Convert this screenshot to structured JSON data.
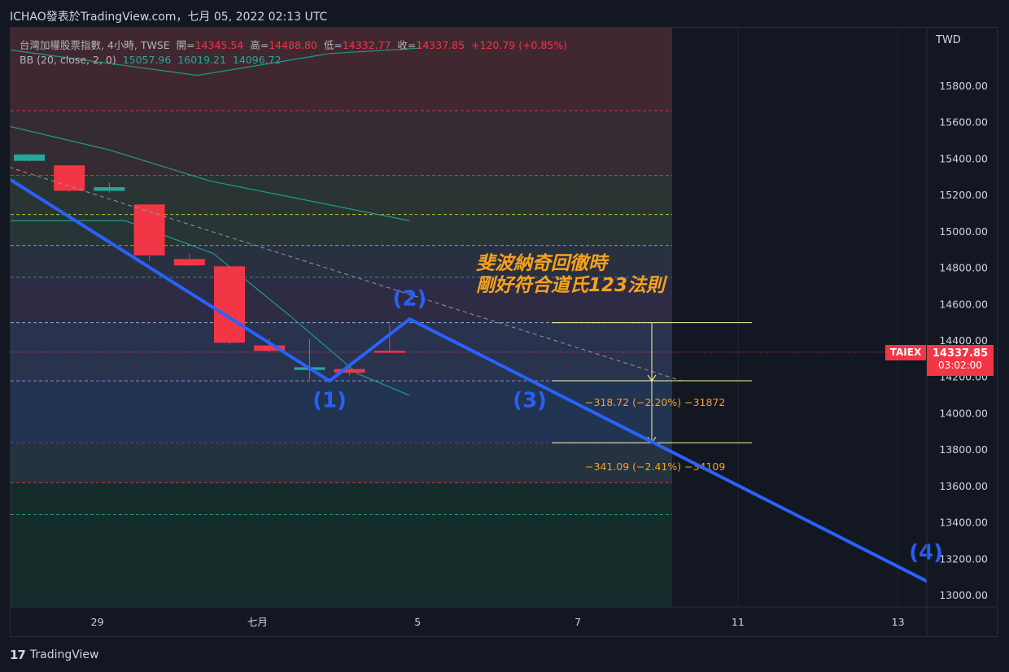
{
  "header": {
    "title": "ICHAO發表於TradingView.com，七月 05, 2022 02:13 UTC"
  },
  "legend": {
    "symbol_line": "台灣加權股票指數, 4小時, TWSE",
    "open_label": "開=",
    "open": "14345.54",
    "high_label": "高=",
    "high": "14488.80",
    "low_label": "低=",
    "low": "14332.77",
    "close_label": "收=",
    "close": "14337.85",
    "change": "+120.79 (+0.85%)",
    "bb_label": "BB (20, close, 2, 0)",
    "bb_basis": "15057.96",
    "bb_upper": "16019.21",
    "bb_lower": "14096.72"
  },
  "axis": {
    "currency": "TWD",
    "symbol_tag": "TAIEX",
    "last_price": "14337.85",
    "countdown": "03:02:00"
  },
  "annotation": {
    "line1": "斐波納奇回徹時",
    "line2": "剛好符合道氏123法則"
  },
  "measure": {
    "label1": "−318.72 (−2.20%) −31872",
    "label2": "−341.09 (−2.41%) −34109"
  },
  "footer": {
    "logo": "17",
    "brand": "TradingView"
  },
  "colors": {
    "background": "#131722",
    "up": "#26a69a",
    "down": "#f23645",
    "wave": "#2962ff",
    "annotation": "#f7a21b",
    "measure": "#fff59d"
  },
  "chart_data": {
    "type": "candlestick",
    "ylim": [
      12930,
      16000
    ],
    "yticks": [
      13000,
      13200,
      13400,
      13600,
      13800,
      14000,
      14200,
      14400,
      14600,
      14800,
      15000,
      15200,
      15400,
      15600,
      15800
    ],
    "x_tick_labels": [
      {
        "label": "29",
        "idx": 1.7
      },
      {
        "label": "七月",
        "idx": 5.7
      },
      {
        "label": "5",
        "idx": 9.7
      },
      {
        "label": "7",
        "idx": 13.7
      },
      {
        "label": "11",
        "idx": 17.7
      },
      {
        "label": "13",
        "idx": 21.7
      }
    ],
    "candles": [
      {
        "idx": 0,
        "o": 15390,
        "h": 15430,
        "c": 15425,
        "l": 15385
      },
      {
        "idx": 1,
        "o": 15365,
        "h": 15365,
        "c": 15225,
        "l": 15215
      },
      {
        "idx": 2,
        "o": 15225,
        "h": 15270,
        "c": 15245,
        "l": 15215
      },
      {
        "idx": 3,
        "o": 15150,
        "h": 15150,
        "c": 14870,
        "l": 14840
      },
      {
        "idx": 4,
        "o": 14850,
        "h": 14880,
        "c": 14815,
        "l": 14810
      },
      {
        "idx": 5,
        "o": 14810,
        "h": 14810,
        "c": 14390,
        "l": 14380
      },
      {
        "idx": 6,
        "o": 14375,
        "h": 14415,
        "c": 14345,
        "l": 14340
      },
      {
        "idx": 7,
        "o": 14240,
        "h": 14410,
        "c": 14255,
        "l": 14190
      },
      {
        "idx": 8,
        "o": 14245,
        "h": 14250,
        "c": 14225,
        "l": 14210
      },
      {
        "idx": 9,
        "o": 14345.54,
        "h": 14488.8,
        "c": 14337.85,
        "l": 14332.77
      }
    ],
    "bb_upper": [
      [
        -0.5,
        16000
      ],
      [
        4.2,
        15860
      ],
      [
        7.5,
        15980
      ],
      [
        9.8,
        16010
      ]
    ],
    "bb_basis": [
      [
        -0.5,
        15580
      ],
      [
        2,
        15450
      ],
      [
        4.5,
        15280
      ],
      [
        7,
        15170
      ],
      [
        9.5,
        15060
      ]
    ],
    "bb_lower": [
      [
        -0.5,
        15060
      ],
      [
        2.4,
        15060
      ],
      [
        4.6,
        14880
      ],
      [
        6.5,
        14540
      ],
      [
        8.2,
        14220
      ],
      [
        9.5,
        14100
      ]
    ],
    "fib_levels": [
      15665,
      15310,
      15095,
      14925,
      14750,
      14500,
      14180,
      13840,
      13620,
      13445
    ],
    "wave_line": [
      [
        -0.5,
        15290
      ],
      [
        7.5,
        14180
      ],
      [
        9.5,
        14520
      ],
      [
        22.5,
        13070
      ]
    ],
    "wave_labels": [
      {
        "text": "(1)",
        "idx": 7.5,
        "y": 14035
      },
      {
        "text": "(2)",
        "idx": 9.5,
        "y": 14595
      },
      {
        "text": "(3)",
        "idx": 12.5,
        "y": 14035
      },
      {
        "text": "(4)",
        "idx": 22.4,
        "y": 13200
      }
    ],
    "trend_line": [
      [
        -0.5,
        15355
      ],
      [
        16.3,
        14180
      ]
    ],
    "measure_lines": [
      14500,
      14181,
      13840
    ],
    "current_price": 14337.85
  }
}
